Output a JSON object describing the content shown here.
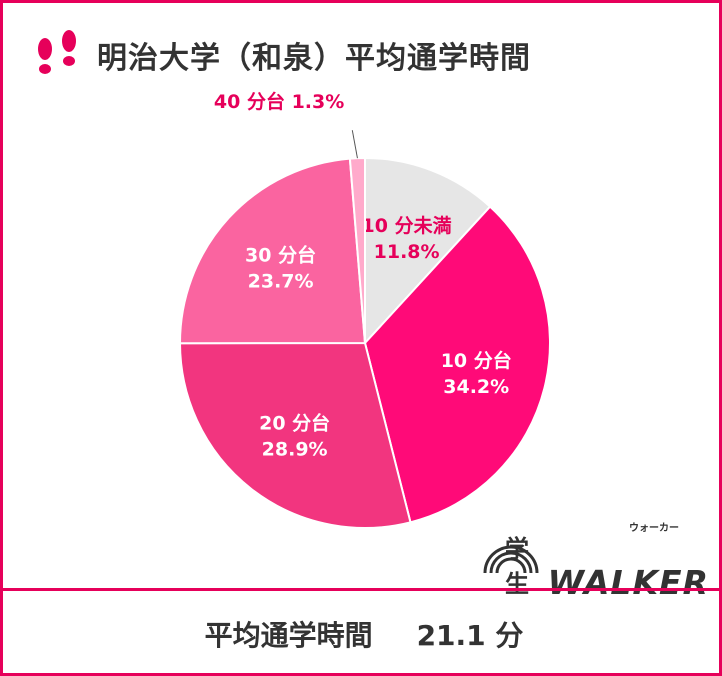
{
  "title": "明治大学（和泉）平均通学時間",
  "footer": {
    "label": "平均通学時間",
    "value": "21.1 分"
  },
  "logo": {
    "prefix": "学生",
    "name": "WALKER",
    "ruby": "ウォーカー"
  },
  "icon": "footprints-icon",
  "colors": {
    "accent": "#e6005a",
    "text": "#333333"
  },
  "chart_data": {
    "type": "pie",
    "title": "明治大学（和泉）平均通学時間",
    "start_angle_deg": 0,
    "direction": "clockwise",
    "slices": [
      {
        "name": "10 分未満",
        "value": 11.8,
        "value_label": "11.8%",
        "color": "#e6e6e6",
        "label_color": "#e6005a"
      },
      {
        "name": "10 分台",
        "value": 34.2,
        "value_label": "34.2%",
        "color": "#ff0a78",
        "label_color": "#ffffff"
      },
      {
        "name": "20 分台",
        "value": 28.9,
        "value_label": "28.9%",
        "color": "#f2357f",
        "label_color": "#ffffff"
      },
      {
        "name": "30 分台",
        "value": 23.7,
        "value_label": "23.7%",
        "color": "#fa64a0",
        "label_color": "#ffffff"
      },
      {
        "name": "40 分台",
        "value": 1.3,
        "value_label": "1.3%",
        "color": "#ffaacb",
        "label_color": "#e6005a",
        "callout": true
      }
    ]
  }
}
